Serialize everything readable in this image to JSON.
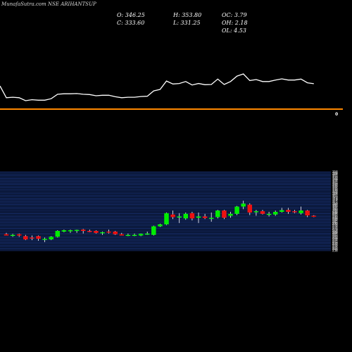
{
  "chart_data": {
    "type": "candlestick",
    "title": "MunafaSutra.com NSE ARIHANTSUP",
    "stats": {
      "open": "O: 346.25",
      "close": "C: 333.60",
      "high": "H: 353.80",
      "low": "L: 331.25",
      "oc": "OC: 3.79",
      "oh": "OH: 2.18",
      "ol": "OL: 4.53"
    },
    "volume_label": "0",
    "y_range": [
      238,
      358
    ],
    "y_ticks": [
      "358",
      "356",
      "354",
      "352",
      "350",
      "348",
      "346",
      "344",
      "342",
      "340",
      "338",
      "336",
      "334",
      "332",
      "330",
      "328",
      "326",
      "324",
      "322",
      "320",
      "318",
      "316",
      "314",
      "312",
      "310",
      "308",
      "306",
      "304",
      "302",
      "300",
      "298",
      "296",
      "294",
      "292",
      "290",
      "288",
      "286",
      "284",
      "282",
      "280",
      "278",
      "276",
      "274",
      "272",
      "270",
      "268",
      "266",
      "264",
      "262",
      "260",
      "258",
      "256",
      "254",
      "252",
      "250",
      "248",
      "246",
      "244",
      "242",
      "240",
      "238"
    ],
    "candles": [
      {
        "o": 263.0,
        "h": 265.0,
        "l": 261.0,
        "c": 261.0
      },
      {
        "o": 261.0,
        "h": 263.5,
        "l": 259.0,
        "c": 262.0
      },
      {
        "o": 263.0,
        "h": 264.0,
        "l": 259.0,
        "c": 261.0
      },
      {
        "o": 260.0,
        "h": 262.0,
        "l": 254.0,
        "c": 255.0
      },
      {
        "o": 258.0,
        "h": 261.0,
        "l": 254.0,
        "c": 257.0
      },
      {
        "o": 260.0,
        "h": 261.0,
        "l": 253.0,
        "c": 256.0
      },
      {
        "o": 255.0,
        "h": 258.0,
        "l": 251.0,
        "c": 256.0
      },
      {
        "o": 255.0,
        "h": 260.0,
        "l": 254.0,
        "c": 259.0
      },
      {
        "o": 259.0,
        "h": 269.0,
        "l": 258.0,
        "c": 268.0
      },
      {
        "o": 267.0,
        "h": 270.0,
        "l": 266.0,
        "c": 269.0
      },
      {
        "o": 268.0,
        "h": 270.0,
        "l": 265.0,
        "c": 269.0
      },
      {
        "o": 268.0,
        "h": 270.0,
        "l": 265.0,
        "c": 269.5
      },
      {
        "o": 270.0,
        "h": 271.0,
        "l": 264.0,
        "c": 268.0
      },
      {
        "o": 268.0,
        "h": 270.0,
        "l": 266.0,
        "c": 267.5
      },
      {
        "o": 268.0,
        "h": 269.0,
        "l": 264.0,
        "c": 265.0
      },
      {
        "o": 265.0,
        "h": 267.0,
        "l": 262.0,
        "c": 266.0
      },
      {
        "o": 267.0,
        "h": 270.0,
        "l": 264.0,
        "c": 266.0
      },
      {
        "o": 267.0,
        "h": 268.0,
        "l": 262.0,
        "c": 263.0
      },
      {
        "o": 263.0,
        "h": 265.0,
        "l": 261.0,
        "c": 261.0
      },
      {
        "o": 262.0,
        "h": 264.0,
        "l": 260.0,
        "c": 262.0
      },
      {
        "o": 262.0,
        "h": 264.0,
        "l": 260.0,
        "c": 262.0
      },
      {
        "o": 261.0,
        "h": 264.0,
        "l": 260.0,
        "c": 263.5
      },
      {
        "o": 264.0,
        "h": 267.0,
        "l": 262.0,
        "c": 264.0
      },
      {
        "o": 262.0,
        "h": 276.0,
        "l": 261.0,
        "c": 275.0
      },
      {
        "o": 275.0,
        "h": 279.0,
        "l": 274.0,
        "c": 278.0
      },
      {
        "o": 278.0,
        "h": 296.0,
        "l": 277.0,
        "c": 295.0
      },
      {
        "o": 293.0,
        "h": 299.0,
        "l": 286.0,
        "c": 289.0
      },
      {
        "o": 289.0,
        "h": 295.0,
        "l": 280.0,
        "c": 290.0
      },
      {
        "o": 287.0,
        "h": 296.0,
        "l": 285.0,
        "c": 294.0
      },
      {
        "o": 295.0,
        "h": 297.0,
        "l": 284.0,
        "c": 287.0
      },
      {
        "o": 288.0,
        "h": 296.0,
        "l": 280.0,
        "c": 290.0
      },
      {
        "o": 290.0,
        "h": 294.0,
        "l": 286.0,
        "c": 287.5
      },
      {
        "o": 287.0,
        "h": 296.0,
        "l": 282.0,
        "c": 288.0
      },
      {
        "o": 289.0,
        "h": 300.0,
        "l": 287.0,
        "c": 299.0
      },
      {
        "o": 299.0,
        "h": 300.0,
        "l": 286.0,
        "c": 288.0
      },
      {
        "o": 291.0,
        "h": 297.0,
        "l": 288.0,
        "c": 294.0
      },
      {
        "o": 294.0,
        "h": 306.0,
        "l": 292.0,
        "c": 305.0
      },
      {
        "o": 305.0,
        "h": 314.0,
        "l": 301.0,
        "c": 309.5
      },
      {
        "o": 308.0,
        "h": 310.0,
        "l": 292.0,
        "c": 296.0
      },
      {
        "o": 297.0,
        "h": 300.0,
        "l": 291.0,
        "c": 298.0
      },
      {
        "o": 298.0,
        "h": 300.0,
        "l": 293.0,
        "c": 294.0
      },
      {
        "o": 293.0,
        "h": 297.0,
        "l": 290.0,
        "c": 294.0
      },
      {
        "o": 293.0,
        "h": 299.0,
        "l": 291.0,
        "c": 297.0
      },
      {
        "o": 297.0,
        "h": 303.0,
        "l": 296.0,
        "c": 299.5
      },
      {
        "o": 300.0,
        "h": 303.0,
        "l": 294.0,
        "c": 297.0
      },
      {
        "o": 298.0,
        "h": 300.0,
        "l": 295.0,
        "c": 297.0
      },
      {
        "o": 295.0,
        "h": 305.0,
        "l": 293.0,
        "c": 299.0
      },
      {
        "o": 299.0,
        "h": 300.0,
        "l": 289.0,
        "c": 291.5
      },
      {
        "o": 291.0,
        "h": 292.0,
        "l": 289.0,
        "c": 289.5
      }
    ],
    "series_colors": {
      "up": "#00ee00",
      "down": "#ee1111",
      "line": "#ffffff",
      "divider": "#ff8800",
      "grid": "#2a4bb0"
    }
  }
}
